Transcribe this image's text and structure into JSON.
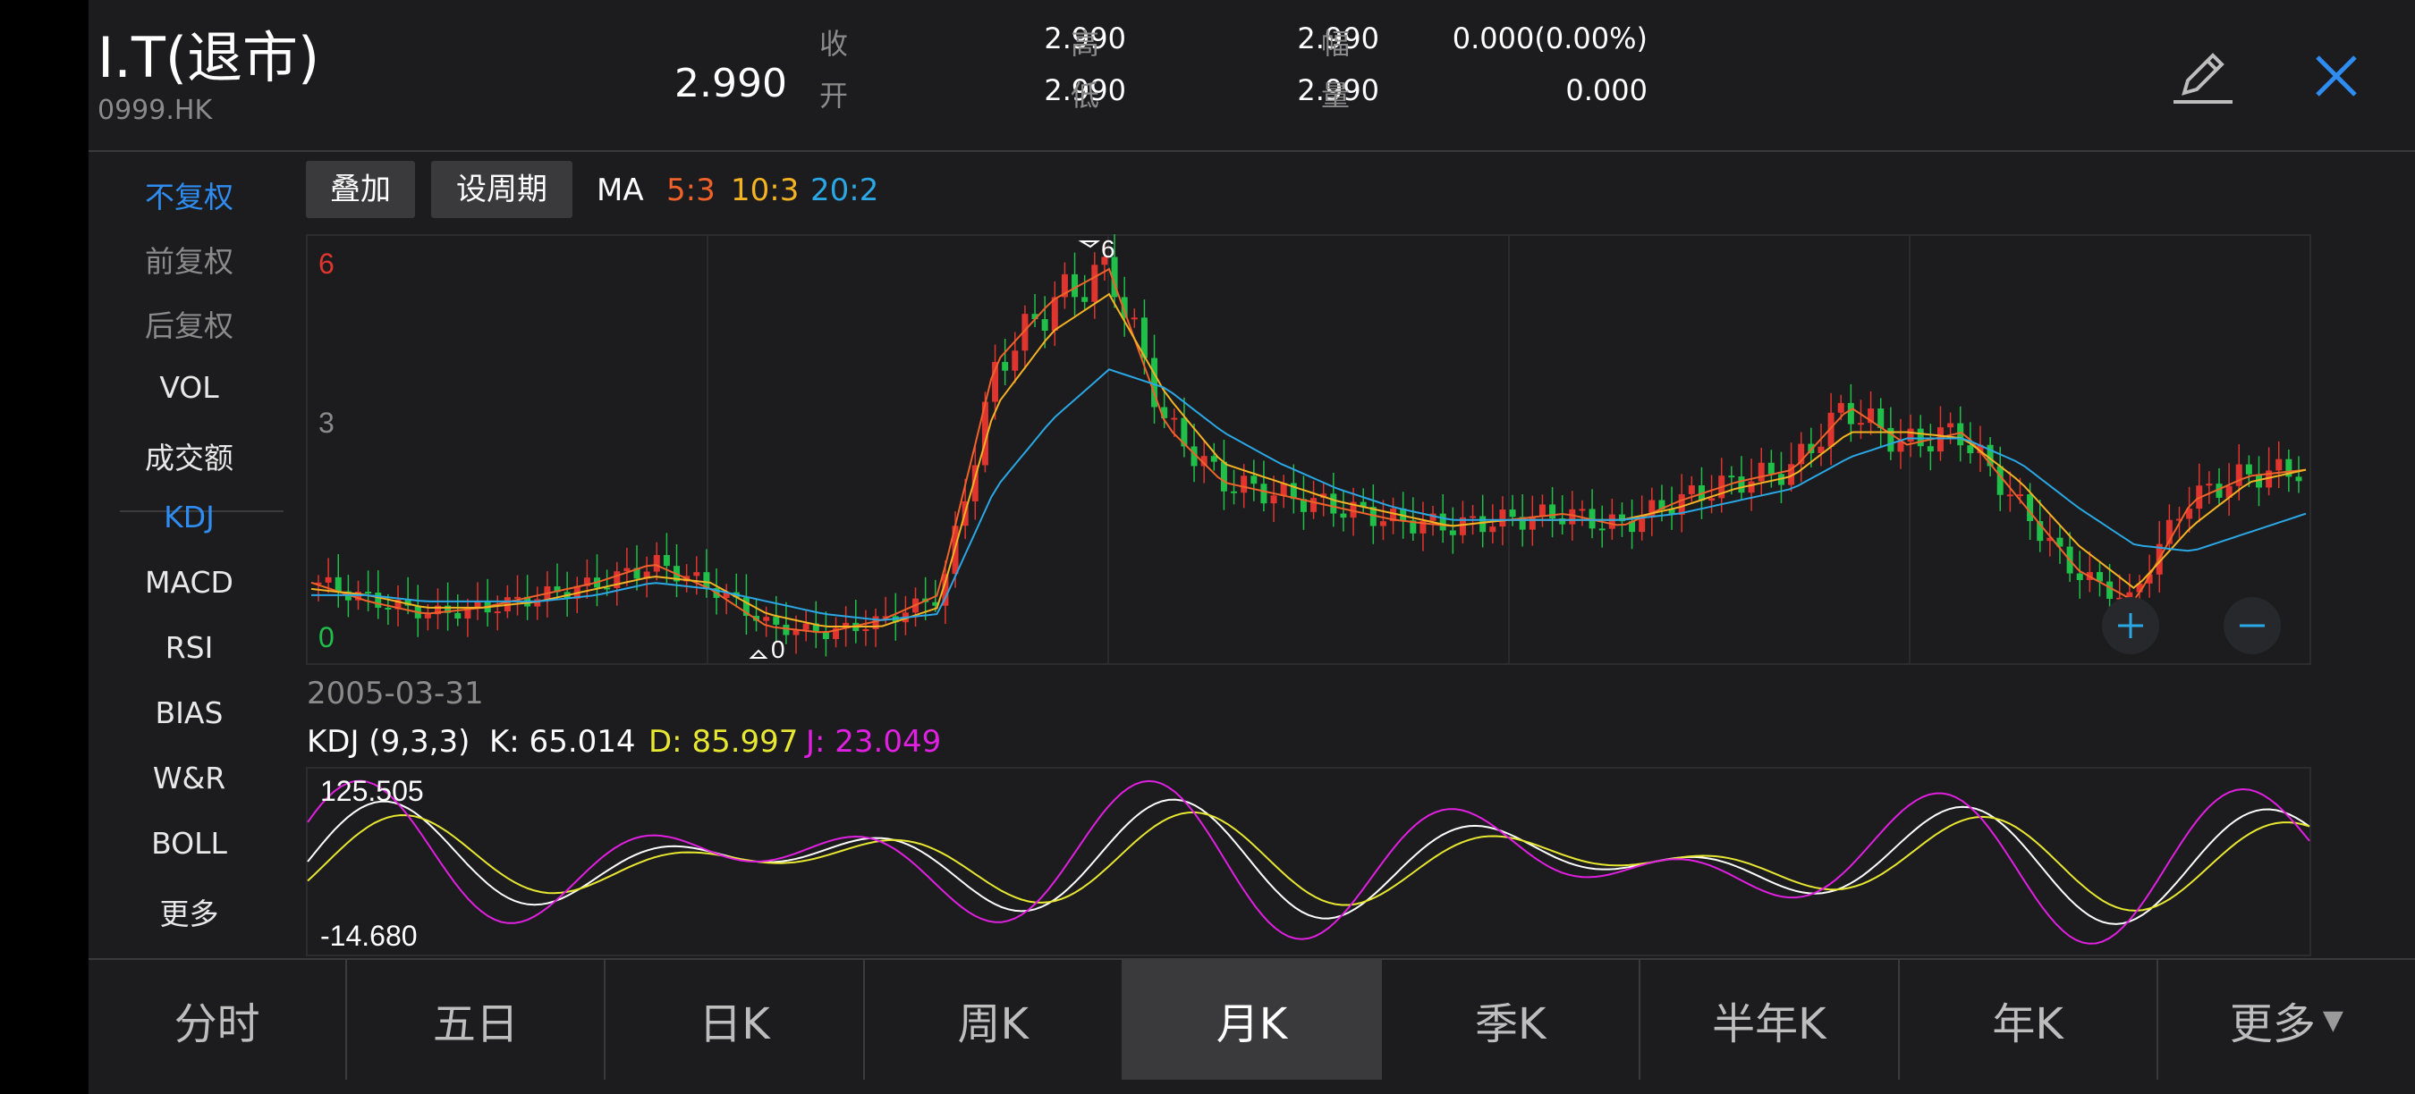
{
  "header": {
    "name": "I.T(退市)",
    "code": "0999.HK",
    "price": "2.990",
    "quotes": {
      "close_label": "收",
      "close": "2.990",
      "open_label": "开",
      "open": "2.990",
      "high_label": "高",
      "high": "2.990",
      "low_label": "低",
      "low": "2.990",
      "change_label": "幅",
      "change": "0.000(0.00%)",
      "volume_label": "量",
      "volume": "0.000"
    },
    "edit_icon": "pencil-icon",
    "close_icon": "close-icon"
  },
  "sidebar": {
    "adjust": [
      "不复权",
      "前复权",
      "后复权"
    ],
    "indicators": [
      "VOL",
      "成交额",
      "KDJ",
      "MACD",
      "RSI",
      "BIAS",
      "W&R",
      "BOLL",
      "更多"
    ],
    "active_adjust": "不复权",
    "active_indicator": "KDJ"
  },
  "toolbar": {
    "overlay_label": "叠加",
    "period_label": "设周期",
    "ma_label": "MA",
    "ma5": "5:3",
    "ma10": "10:3",
    "ma20": "20:2"
  },
  "main_chart": {
    "y_high_label": "6",
    "y_mid_label": "3",
    "y_low_label": "0",
    "max_marker": "6",
    "min_marker": "0",
    "zoom_in_icon": "plus-icon",
    "zoom_out_icon": "minus-icon",
    "start_date": "2005-03-31"
  },
  "kdj": {
    "title": "KDJ (9,3,3)",
    "k": "K: 65.014",
    "d": "D: 85.997",
    "j": "J: 23.049",
    "y_max": "125.505",
    "y_min": "-14.680"
  },
  "tabs": [
    "分时",
    "五日",
    "日K",
    "周K",
    "月K",
    "季K",
    "半年K",
    "年K",
    "更多"
  ],
  "active_tab": "月K",
  "colors": {
    "up": "#e0342f",
    "down": "#1fbf4a",
    "ma5": "#f0622a",
    "ma10": "#f4b323",
    "ma20": "#2aa7e4",
    "k_line": "#ffffff",
    "d_line": "#e8e832",
    "j_line": "#e020e0",
    "accent": "#2f8cf0"
  },
  "chart_data": {
    "type": "line",
    "series": [
      {
        "name": "MA5",
        "values": [
          1.0,
          0.7,
          0.5,
          0.6,
          0.8,
          1.0,
          1.3,
          0.9,
          0.3,
          0.2,
          0.4,
          0.8,
          4.5,
          5.5,
          6.0,
          3.5,
          2.6,
          2.4,
          2.2,
          2.0,
          1.9,
          2.0,
          2.1,
          1.9,
          2.3,
          2.6,
          2.8,
          3.8,
          3.2,
          3.4,
          2.3,
          1.2,
          0.7,
          2.3,
          2.7,
          2.8
        ]
      },
      {
        "name": "MA10",
        "values": [
          0.9,
          0.8,
          0.6,
          0.6,
          0.7,
          0.9,
          1.1,
          1.0,
          0.5,
          0.3,
          0.3,
          0.6,
          3.8,
          5.0,
          5.6,
          4.0,
          2.9,
          2.6,
          2.3,
          2.1,
          1.9,
          2.0,
          2.0,
          2.0,
          2.2,
          2.5,
          2.7,
          3.4,
          3.4,
          3.3,
          2.6,
          1.6,
          0.9,
          1.9,
          2.6,
          2.8
        ]
      },
      {
        "name": "MA20",
        "values": [
          0.8,
          0.8,
          0.7,
          0.7,
          0.7,
          0.8,
          1.0,
          0.9,
          0.7,
          0.5,
          0.4,
          0.5,
          2.5,
          3.6,
          4.4,
          4.1,
          3.4,
          2.9,
          2.5,
          2.2,
          2.0,
          2.0,
          2.0,
          2.0,
          2.1,
          2.3,
          2.5,
          3.0,
          3.3,
          3.3,
          2.9,
          2.2,
          1.6,
          1.5,
          1.8,
          2.1
        ]
      }
    ],
    "ylim": [
      0,
      6.3
    ]
  }
}
